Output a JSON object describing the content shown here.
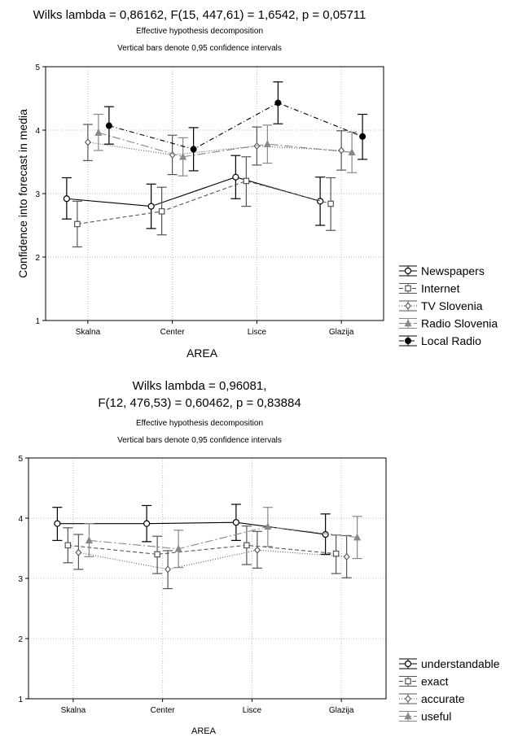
{
  "chart_data": [
    {
      "type": "line",
      "title": "Wilks lambda = 0,86162, F(15, 447,61) = 1,6542, p = 0,05711",
      "subtitle": [
        "Effective hypothesis decomposition",
        "Vertical bars denote 0,95 confidence intervals"
      ],
      "xlabel": "AREA",
      "ylabel": "Confidence into forecast in media",
      "categories": [
        "Skalna",
        "Center",
        "Lisce",
        "Glazija"
      ],
      "ylim": [
        1,
        5
      ],
      "yticks": [
        "1",
        "2",
        "3",
        "4",
        "5"
      ],
      "grid": true,
      "legend_position": "right",
      "series": [
        {
          "name": "Newspapers",
          "values": [
            2.92,
            2.8,
            3.26,
            2.88
          ],
          "lower": [
            2.6,
            2.45,
            2.92,
            2.5
          ],
          "upper": [
            3.25,
            3.15,
            3.6,
            3.26
          ],
          "marker": "circle-open",
          "dash": "",
          "color": "#000000"
        },
        {
          "name": "Internet",
          "values": [
            2.52,
            2.72,
            3.2,
            2.84
          ],
          "lower": [
            2.16,
            2.35,
            2.8,
            2.42
          ],
          "upper": [
            2.88,
            3.1,
            3.58,
            3.25
          ],
          "marker": "square-open",
          "dash": "5,3",
          "color": "#555555"
        },
        {
          "name": "TV Slovenia",
          "values": [
            3.81,
            3.61,
            3.75,
            3.68
          ],
          "lower": [
            3.52,
            3.3,
            3.45,
            3.37
          ],
          "upper": [
            4.09,
            3.92,
            4.05,
            3.99
          ],
          "marker": "diamond-open",
          "dash": "1,2",
          "color": "#555555"
        },
        {
          "name": "Radio Slovenia",
          "values": [
            3.96,
            3.58,
            3.78,
            3.65
          ],
          "lower": [
            3.68,
            3.28,
            3.48,
            3.33
          ],
          "upper": [
            4.25,
            3.88,
            4.08,
            3.97
          ],
          "marker": "triangle",
          "dash": "10,3,2,3",
          "color": "#888888"
        },
        {
          "name": "Local Radio",
          "values": [
            4.07,
            3.7,
            4.43,
            3.9
          ],
          "lower": [
            3.78,
            3.36,
            4.1,
            3.54
          ],
          "upper": [
            4.37,
            4.04,
            4.76,
            4.25
          ],
          "marker": "circle-filled",
          "dash": "6,3,1,3",
          "color": "#000000"
        }
      ]
    },
    {
      "type": "line",
      "title": [
        "Wilks lambda = 0,96081,",
        "F(12, 476,53) = 0,60462, p = 0,83884"
      ],
      "subtitle": [
        "Effective hypothesis decomposition",
        "Vertical bars denote 0,95 confidence intervals"
      ],
      "xlabel": "AREA",
      "ylabel": "",
      "categories": [
        "Skalna",
        "Center",
        "Lisce",
        "Glazija"
      ],
      "ylim": [
        1,
        5
      ],
      "yticks": [
        "1",
        "2",
        "3",
        "4",
        "5"
      ],
      "grid": true,
      "legend_position": "right",
      "series": [
        {
          "name": "understandable",
          "values": [
            3.91,
            3.91,
            3.93,
            3.73
          ],
          "lower": [
            3.63,
            3.61,
            3.63,
            3.4
          ],
          "upper": [
            4.18,
            4.21,
            4.23,
            4.07
          ],
          "marker": "circle-open",
          "dash": "",
          "color": "#000000"
        },
        {
          "name": "exact",
          "values": [
            3.55,
            3.4,
            3.55,
            3.41
          ],
          "lower": [
            3.26,
            3.08,
            3.23,
            3.08
          ],
          "upper": [
            3.84,
            3.7,
            3.87,
            3.72
          ],
          "marker": "square-open",
          "dash": "5,3",
          "color": "#555555"
        },
        {
          "name": "accurate",
          "values": [
            3.43,
            3.15,
            3.47,
            3.36
          ],
          "lower": [
            3.15,
            2.83,
            3.17,
            3.01
          ],
          "upper": [
            3.73,
            3.46,
            3.78,
            3.71
          ],
          "marker": "diamond-open",
          "dash": "1,2",
          "color": "#555555"
        },
        {
          "name": "useful",
          "values": [
            3.63,
            3.49,
            3.86,
            3.68
          ],
          "lower": [
            3.36,
            3.18,
            3.53,
            3.33
          ],
          "upper": [
            3.91,
            3.8,
            4.18,
            4.03
          ],
          "marker": "triangle",
          "dash": "10,3,2,3",
          "color": "#888888"
        }
      ]
    }
  ]
}
